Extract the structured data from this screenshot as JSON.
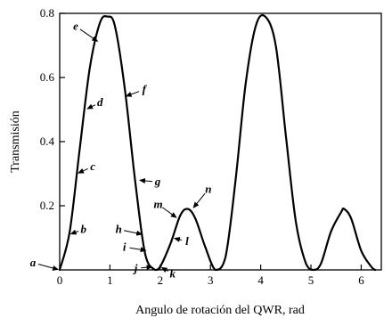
{
  "chart_data": {
    "type": "line",
    "title": "",
    "xlabel": "Angulo de rotación del QWR, rad",
    "ylabel": "Transmisión",
    "xlim": [
      0,
      6.4
    ],
    "ylim": [
      0,
      0.8
    ],
    "x_ticks": [
      0,
      1,
      2,
      3,
      4,
      5,
      6
    ],
    "x_tick_labels": [
      "0",
      "1",
      "2",
      "3",
      "4",
      "5",
      "6"
    ],
    "y_ticks": [
      0.2,
      0.4,
      0.6,
      0.8
    ],
    "y_tick_labels": [
      "0.2",
      "0.4",
      "0.6",
      "0.8"
    ],
    "grid": false,
    "legend": "none",
    "series": [
      {
        "x": [
          0,
          0.2,
          0.4,
          0.6,
          0.8,
          0.95,
          1.1,
          1.3,
          1.5,
          1.7,
          1.9,
          2.0,
          2.2,
          2.4,
          2.55,
          2.7,
          2.9,
          3.1,
          3.3,
          3.5,
          3.7,
          3.9,
          4.09,
          4.3,
          4.5,
          4.7,
          4.9,
          5.05,
          5.2,
          5.4,
          5.6,
          5.66,
          5.8,
          6.0,
          6.2,
          6.28
        ],
        "y": [
          0,
          0.12,
          0.38,
          0.63,
          0.77,
          0.79,
          0.76,
          0.56,
          0.28,
          0.05,
          0.0,
          0.01,
          0.08,
          0.17,
          0.19,
          0.16,
          0.07,
          0.0,
          0.04,
          0.28,
          0.58,
          0.76,
          0.79,
          0.7,
          0.42,
          0.15,
          0.02,
          0.0,
          0.02,
          0.12,
          0.18,
          0.19,
          0.16,
          0.06,
          0.01,
          0.0
        ]
      }
    ],
    "annotations": [
      {
        "label": "a",
        "x": 0.0,
        "y": 0.0
      },
      {
        "label": "b",
        "x": 0.19,
        "y": 0.11
      },
      {
        "label": "c",
        "x": 0.34,
        "y": 0.3
      },
      {
        "label": "d",
        "x": 0.52,
        "y": 0.5
      },
      {
        "label": "e",
        "x": 0.78,
        "y": 0.71
      },
      {
        "label": "f",
        "x": 1.29,
        "y": 0.54
      },
      {
        "label": "g",
        "x": 1.56,
        "y": 0.28
      },
      {
        "label": "h",
        "x": 1.67,
        "y": 0.11
      },
      {
        "label": "i",
        "x": 1.75,
        "y": 0.06
      },
      {
        "label": "j",
        "x": 1.87,
        "y": 0.01
      },
      {
        "label": "k",
        "x": 2.0,
        "y": 0.01
      },
      {
        "label": "l",
        "x": 2.25,
        "y": 0.1
      },
      {
        "label": "m",
        "x": 2.35,
        "y": 0.16
      },
      {
        "label": "n",
        "x": 2.64,
        "y": 0.19
      }
    ]
  }
}
